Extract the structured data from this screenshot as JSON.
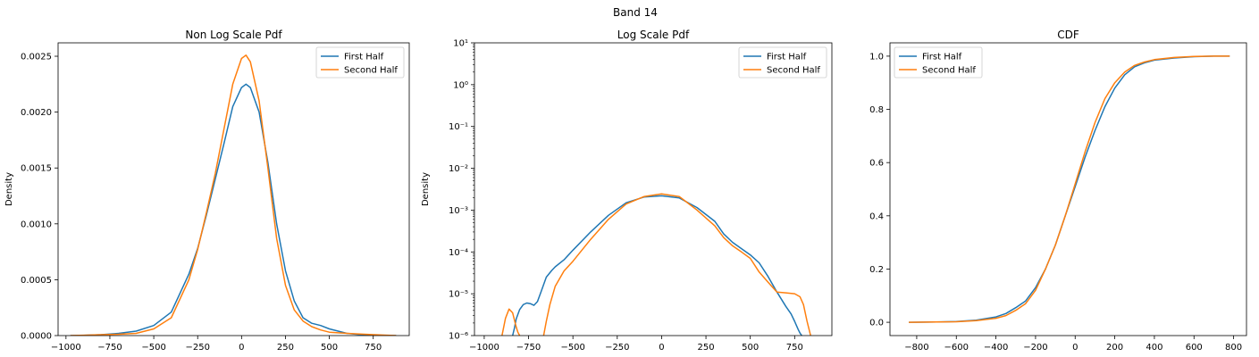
{
  "figure": {
    "suptitle": "Band 14"
  },
  "colors": {
    "first": "#1f77b4",
    "second": "#ff7f0e",
    "axis": "#000000"
  },
  "chart_data": [
    {
      "type": "line",
      "title": "Non Log Scale Pdf",
      "xlabel": "",
      "ylabel": "Density",
      "xlim": [
        -1045,
        955
      ],
      "ylim": [
        0,
        0.00262
      ],
      "yscale": "linear",
      "xticks": [
        -1000,
        -750,
        -500,
        -250,
        0,
        250,
        500,
        750
      ],
      "xtick_labels": [
        "−1000",
        "−750",
        "−500",
        "−250",
        "0",
        "250",
        "500",
        "750"
      ],
      "yticks": [
        0,
        0.0005,
        0.001,
        0.0015,
        0.002,
        0.0025
      ],
      "ytick_labels": [
        "0.0000",
        "0.0005",
        "0.0010",
        "0.0015",
        "0.0020",
        "0.0025"
      ],
      "legend": {
        "position": "upper right",
        "entries": [
          "First Half",
          "Second Half"
        ]
      },
      "series": [
        {
          "name": "First Half",
          "x": [
            -975,
            -900,
            -800,
            -700,
            -600,
            -500,
            -400,
            -300,
            -250,
            -200,
            -150,
            -100,
            -50,
            0,
            25,
            50,
            100,
            150,
            200,
            250,
            300,
            350,
            400,
            450,
            500,
            550,
            600,
            700,
            800,
            880
          ],
          "y": [
            0,
            2e-06,
            8e-06,
            2e-05,
            4e-05,
            9e-05,
            0.00021,
            0.00055,
            0.00078,
            0.00108,
            0.0014,
            0.00172,
            0.00205,
            0.00222,
            0.00225,
            0.00222,
            0.002,
            0.00155,
            0.001,
            0.00058,
            0.00031,
            0.00016,
            0.00011,
            9e-05,
            6e-05,
            4e-05,
            2e-05,
            5e-06,
            0,
            0
          ]
        },
        {
          "name": "Second Half",
          "x": [
            -975,
            -900,
            -800,
            -700,
            -600,
            -500,
            -400,
            -300,
            -250,
            -200,
            -150,
            -100,
            -50,
            0,
            25,
            50,
            100,
            150,
            200,
            250,
            300,
            350,
            400,
            450,
            500,
            550,
            600,
            700,
            800,
            880
          ],
          "y": [
            0,
            3e-06,
            8e-06,
            1.2e-05,
            2e-05,
            6e-05,
            0.00016,
            0.0005,
            0.00077,
            0.0011,
            0.00145,
            0.00185,
            0.00225,
            0.00248,
            0.00251,
            0.00245,
            0.0021,
            0.0015,
            0.00087,
            0.00045,
            0.00023,
            0.00013,
            8e-05,
            5e-05,
            3e-05,
            2.5e-05,
            2e-05,
            1.2e-05,
            5e-06,
            0
          ]
        }
      ]
    },
    {
      "type": "line",
      "title": "Log Scale Pdf",
      "xlabel": "",
      "ylabel": "Density",
      "xlim": [
        -1055,
        960
      ],
      "ylim": [
        1e-06,
        10
      ],
      "yscale": "log",
      "xticks": [
        -1000,
        -750,
        -500,
        -250,
        0,
        250,
        500,
        750
      ],
      "xtick_labels": [
        "−1000",
        "−750",
        "−500",
        "−250",
        "0",
        "250",
        "500",
        "750"
      ],
      "yticks": [
        -6,
        -5,
        -4,
        -3,
        -2,
        -1,
        0,
        1
      ],
      "ytick_labels": [
        "10⁻⁶",
        "10⁻⁵",
        "10⁻⁴",
        "10⁻³",
        "10⁻²",
        "10⁻¹",
        "10⁰",
        "10¹"
      ],
      "legend": {
        "position": "upper right",
        "entries": [
          "First Half",
          "Second Half"
        ]
      },
      "series": [
        {
          "name": "First Half",
          "x": [
            -840,
            -830,
            -820,
            -800,
            -780,
            -760,
            -740,
            -720,
            -700,
            -680,
            -650,
            -620,
            -600,
            -550,
            -500,
            -400,
            -300,
            -200,
            -100,
            0,
            100,
            200,
            300,
            350,
            400,
            450,
            500,
            550,
            600,
            650,
            700,
            730,
            750,
            770,
            780,
            790
          ],
          "y": [
            1e-06,
            1.5e-06,
            2.5e-06,
            4.2e-06,
            5.5e-06,
            6e-06,
            5.8e-06,
            5.3e-06,
            6.5e-06,
            1.1e-05,
            2.5e-05,
            3.6e-05,
            4.4e-05,
            6.5e-05,
            0.00011,
            0.0003,
            0.00075,
            0.0015,
            0.00205,
            0.0022,
            0.00195,
            0.00115,
            0.00054,
            0.00027,
            0.00017,
            0.00012,
            8.5e-05,
            5.5e-05,
            2.6e-05,
            1.1e-05,
            5e-06,
            3.3e-06,
            2.2e-06,
            1.4e-06,
            1.15e-06,
            1e-06
          ]
        },
        {
          "name": "Second Half",
          "x": [
            -900,
            -880,
            -860,
            -840,
            -820,
            -810,
            -800
          ],
          "y": [
            1e-06,
            2.6e-06,
            4.3e-06,
            3.5e-06,
            1.6e-06,
            1.2e-06,
            1e-06
          ]
        },
        {
          "name": "Second Half (main)",
          "x": [
            -665,
            -650,
            -630,
            -600,
            -550,
            -500,
            -400,
            -300,
            -200,
            -100,
            0,
            100,
            200,
            300,
            350,
            400,
            450,
            500,
            550,
            600,
            650,
            700,
            750,
            780,
            800,
            820,
            840
          ],
          "y": [
            1e-06,
            2.2e-06,
            5.5e-06,
            1.5e-05,
            3.5e-05,
            6e-05,
            0.0002,
            0.0006,
            0.0014,
            0.0021,
            0.00245,
            0.0021,
            0.001,
            0.00042,
            0.00022,
            0.00014,
            0.0001,
            7e-05,
            3.3e-05,
            1.9e-05,
            1.1e-05,
            1.05e-05,
            1e-05,
            8.5e-06,
            5.5e-06,
            2.2e-06,
            1e-06
          ]
        }
      ]
    },
    {
      "type": "line",
      "title": "CDF",
      "xlabel": "",
      "ylabel": "",
      "xlim": [
        -935,
        865
      ],
      "ylim": [
        -0.05,
        1.05
      ],
      "yscale": "linear",
      "xticks": [
        -800,
        -600,
        -400,
        -200,
        0,
        200,
        400,
        600,
        800
      ],
      "xtick_labels": [
        "−800",
        "−600",
        "−400",
        "−200",
        "0",
        "200",
        "400",
        "600",
        "800"
      ],
      "yticks": [
        0,
        0.2,
        0.4,
        0.6,
        0.8,
        1.0
      ],
      "ytick_labels": [
        "0.0",
        "0.2",
        "0.4",
        "0.6",
        "0.8",
        "1.0"
      ],
      "legend": {
        "position": "upper left",
        "entries": [
          "First Half",
          "Second Half"
        ]
      },
      "series": [
        {
          "name": "First Half",
          "x": [
            -840,
            -700,
            -600,
            -500,
            -400,
            -350,
            -300,
            -250,
            -200,
            -150,
            -100,
            -50,
            0,
            50,
            100,
            150,
            200,
            250,
            300,
            350,
            400,
            500,
            600,
            700,
            780
          ],
          "y": [
            0,
            0.001,
            0.003,
            0.008,
            0.02,
            0.033,
            0.055,
            0.08,
            0.13,
            0.2,
            0.29,
            0.4,
            0.51,
            0.62,
            0.72,
            0.81,
            0.88,
            0.93,
            0.96,
            0.975,
            0.985,
            0.993,
            0.998,
            1.0,
            1.0
          ]
        },
        {
          "name": "Second Half",
          "x": [
            -840,
            -700,
            -600,
            -500,
            -400,
            -350,
            -300,
            -250,
            -200,
            -150,
            -100,
            -50,
            0,
            50,
            100,
            150,
            200,
            250,
            300,
            350,
            400,
            500,
            600,
            700,
            780
          ],
          "y": [
            0,
            0.001,
            0.002,
            0.006,
            0.015,
            0.025,
            0.045,
            0.07,
            0.12,
            0.2,
            0.29,
            0.4,
            0.52,
            0.64,
            0.75,
            0.84,
            0.9,
            0.94,
            0.965,
            0.978,
            0.987,
            0.995,
            0.999,
            1.0,
            1.0
          ]
        }
      ]
    }
  ]
}
